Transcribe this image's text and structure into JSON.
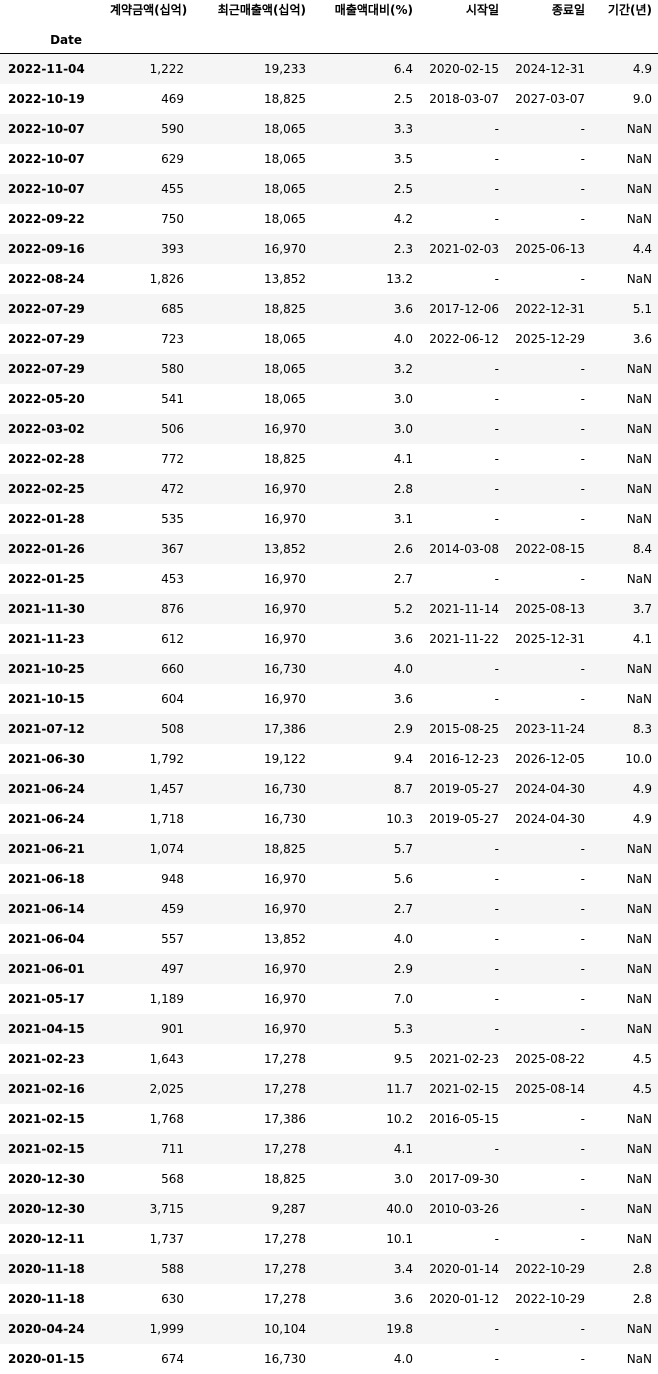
{
  "table": {
    "index_name": "Date",
    "columns": [
      "계약금액(십억)",
      "최근매출액(십억)",
      "매출액대비(%)",
      "시작일",
      "종료일",
      "기간(년)"
    ],
    "rows": [
      {
        "date": "2022-11-04",
        "cells": [
          "1,222",
          "19,233",
          "6.4",
          "2020-02-15",
          "2024-12-31",
          "4.9"
        ]
      },
      {
        "date": "2022-10-19",
        "cells": [
          "469",
          "18,825",
          "2.5",
          "2018-03-07",
          "2027-03-07",
          "9.0"
        ]
      },
      {
        "date": "2022-10-07",
        "cells": [
          "590",
          "18,065",
          "3.3",
          "-",
          "-",
          "NaN"
        ]
      },
      {
        "date": "2022-10-07",
        "cells": [
          "629",
          "18,065",
          "3.5",
          "-",
          "-",
          "NaN"
        ]
      },
      {
        "date": "2022-10-07",
        "cells": [
          "455",
          "18,065",
          "2.5",
          "-",
          "-",
          "NaN"
        ]
      },
      {
        "date": "2022-09-22",
        "cells": [
          "750",
          "18,065",
          "4.2",
          "-",
          "-",
          "NaN"
        ]
      },
      {
        "date": "2022-09-16",
        "cells": [
          "393",
          "16,970",
          "2.3",
          "2021-02-03",
          "2025-06-13",
          "4.4"
        ]
      },
      {
        "date": "2022-08-24",
        "cells": [
          "1,826",
          "13,852",
          "13.2",
          "-",
          "-",
          "NaN"
        ]
      },
      {
        "date": "2022-07-29",
        "cells": [
          "685",
          "18,825",
          "3.6",
          "2017-12-06",
          "2022-12-31",
          "5.1"
        ]
      },
      {
        "date": "2022-07-29",
        "cells": [
          "723",
          "18,065",
          "4.0",
          "2022-06-12",
          "2025-12-29",
          "3.6"
        ]
      },
      {
        "date": "2022-07-29",
        "cells": [
          "580",
          "18,065",
          "3.2",
          "-",
          "-",
          "NaN"
        ]
      },
      {
        "date": "2022-05-20",
        "cells": [
          "541",
          "18,065",
          "3.0",
          "-",
          "-",
          "NaN"
        ]
      },
      {
        "date": "2022-03-02",
        "cells": [
          "506",
          "16,970",
          "3.0",
          "-",
          "-",
          "NaN"
        ]
      },
      {
        "date": "2022-02-28",
        "cells": [
          "772",
          "18,825",
          "4.1",
          "-",
          "-",
          "NaN"
        ]
      },
      {
        "date": "2022-02-25",
        "cells": [
          "472",
          "16,970",
          "2.8",
          "-",
          "-",
          "NaN"
        ]
      },
      {
        "date": "2022-01-28",
        "cells": [
          "535",
          "16,970",
          "3.1",
          "-",
          "-",
          "NaN"
        ]
      },
      {
        "date": "2022-01-26",
        "cells": [
          "367",
          "13,852",
          "2.6",
          "2014-03-08",
          "2022-08-15",
          "8.4"
        ]
      },
      {
        "date": "2022-01-25",
        "cells": [
          "453",
          "16,970",
          "2.7",
          "-",
          "-",
          "NaN"
        ]
      },
      {
        "date": "2021-11-30",
        "cells": [
          "876",
          "16,970",
          "5.2",
          "2021-11-14",
          "2025-08-13",
          "3.7"
        ]
      },
      {
        "date": "2021-11-23",
        "cells": [
          "612",
          "16,970",
          "3.6",
          "2021-11-22",
          "2025-12-31",
          "4.1"
        ]
      },
      {
        "date": "2021-10-25",
        "cells": [
          "660",
          "16,730",
          "4.0",
          "-",
          "-",
          "NaN"
        ]
      },
      {
        "date": "2021-10-15",
        "cells": [
          "604",
          "16,970",
          "3.6",
          "-",
          "-",
          "NaN"
        ]
      },
      {
        "date": "2021-07-12",
        "cells": [
          "508",
          "17,386",
          "2.9",
          "2015-08-25",
          "2023-11-24",
          "8.3"
        ]
      },
      {
        "date": "2021-06-30",
        "cells": [
          "1,792",
          "19,122",
          "9.4",
          "2016-12-23",
          "2026-12-05",
          "10.0"
        ]
      },
      {
        "date": "2021-06-24",
        "cells": [
          "1,457",
          "16,730",
          "8.7",
          "2019-05-27",
          "2024-04-30",
          "4.9"
        ]
      },
      {
        "date": "2021-06-24",
        "cells": [
          "1,718",
          "16,730",
          "10.3",
          "2019-05-27",
          "2024-04-30",
          "4.9"
        ]
      },
      {
        "date": "2021-06-21",
        "cells": [
          "1,074",
          "18,825",
          "5.7",
          "-",
          "-",
          "NaN"
        ]
      },
      {
        "date": "2021-06-18",
        "cells": [
          "948",
          "16,970",
          "5.6",
          "-",
          "-",
          "NaN"
        ]
      },
      {
        "date": "2021-06-14",
        "cells": [
          "459",
          "16,970",
          "2.7",
          "-",
          "-",
          "NaN"
        ]
      },
      {
        "date": "2021-06-04",
        "cells": [
          "557",
          "13,852",
          "4.0",
          "-",
          "-",
          "NaN"
        ]
      },
      {
        "date": "2021-06-01",
        "cells": [
          "497",
          "16,970",
          "2.9",
          "-",
          "-",
          "NaN"
        ]
      },
      {
        "date": "2021-05-17",
        "cells": [
          "1,189",
          "16,970",
          "7.0",
          "-",
          "-",
          "NaN"
        ]
      },
      {
        "date": "2021-04-15",
        "cells": [
          "901",
          "16,970",
          "5.3",
          "-",
          "-",
          "NaN"
        ]
      },
      {
        "date": "2021-02-23",
        "cells": [
          "1,643",
          "17,278",
          "9.5",
          "2021-02-23",
          "2025-08-22",
          "4.5"
        ]
      },
      {
        "date": "2021-02-16",
        "cells": [
          "2,025",
          "17,278",
          "11.7",
          "2021-02-15",
          "2025-08-14",
          "4.5"
        ]
      },
      {
        "date": "2021-02-15",
        "cells": [
          "1,768",
          "17,386",
          "10.2",
          "2016-05-15",
          "-",
          "NaN"
        ]
      },
      {
        "date": "2021-02-15",
        "cells": [
          "711",
          "17,278",
          "4.1",
          "-",
          "-",
          "NaN"
        ]
      },
      {
        "date": "2020-12-30",
        "cells": [
          "568",
          "18,825",
          "3.0",
          "2017-09-30",
          "-",
          "NaN"
        ]
      },
      {
        "date": "2020-12-30",
        "cells": [
          "3,715",
          "9,287",
          "40.0",
          "2010-03-26",
          "-",
          "NaN"
        ]
      },
      {
        "date": "2020-12-11",
        "cells": [
          "1,737",
          "17,278",
          "10.1",
          "-",
          "-",
          "NaN"
        ]
      },
      {
        "date": "2020-11-18",
        "cells": [
          "588",
          "17,278",
          "3.4",
          "2020-01-14",
          "2022-10-29",
          "2.8"
        ]
      },
      {
        "date": "2020-11-18",
        "cells": [
          "630",
          "17,278",
          "3.6",
          "2020-01-12",
          "2022-10-29",
          "2.8"
        ]
      },
      {
        "date": "2020-04-24",
        "cells": [
          "1,999",
          "10,104",
          "19.8",
          "-",
          "-",
          "NaN"
        ]
      },
      {
        "date": "2020-01-15",
        "cells": [
          "674",
          "16,730",
          "4.0",
          "-",
          "-",
          "NaN"
        ]
      }
    ]
  }
}
